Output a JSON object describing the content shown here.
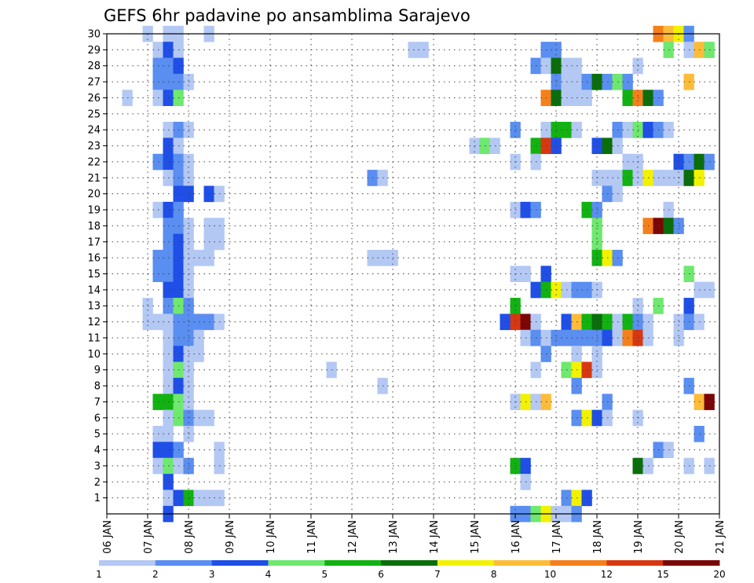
{
  "chart_data": {
    "type": "heatmap",
    "title": "GEFS 6hr padavine po ansamblima Sarajevo",
    "xlabel": "",
    "ylabel": "",
    "x_ticks": [
      "06 JAN",
      "07 JAN",
      "08 JAN",
      "09 JAN",
      "10 JAN",
      "11 JAN",
      "12 JAN",
      "13 JAN",
      "14 JAN",
      "15 JAN",
      "16 JAN",
      "17 JAN",
      "18 JAN",
      "19 JAN",
      "20 JAN",
      "21 JAN"
    ],
    "xlim_days": [
      6,
      21
    ],
    "y_ticks": [
      1,
      2,
      3,
      4,
      5,
      6,
      7,
      8,
      9,
      10,
      11,
      12,
      13,
      14,
      15,
      16,
      17,
      18,
      19,
      20,
      21,
      22,
      23,
      24,
      25,
      26,
      27,
      28,
      29,
      30
    ],
    "ylim": [
      0,
      30
    ],
    "grid": true,
    "legend_position": "bottom",
    "color_scale": {
      "bounds": [
        "1",
        "2",
        "3",
        "4",
        "5",
        "6",
        "7",
        "8",
        "10",
        "12",
        "15",
        "20"
      ],
      "colors": [
        "#b4c8f4",
        "#5a8ef0",
        "#1f4fe6",
        "#6ee86e",
        "#12b212",
        "#0a6e0a",
        "#f2f200",
        "#fcbc3a",
        "#f4801c",
        "#d63812",
        "#7a0606"
      ]
    },
    "cells_note": "[member, valid day (DD.frac of January), color class index]",
    "cells": [
      [
        30,
        7.5,
        0
      ],
      [
        30,
        7.75,
        0
      ],
      [
        30,
        7.0,
        0
      ],
      [
        30,
        8.5,
        0
      ],
      [
        30,
        19.5,
        8
      ],
      [
        30,
        19.75,
        7
      ],
      [
        30,
        20.0,
        6
      ],
      [
        30,
        20.25,
        1
      ],
      [
        29,
        7.25,
        0
      ],
      [
        29,
        7.5,
        2
      ],
      [
        29,
        7.75,
        0
      ],
      [
        29,
        13.5,
        0
      ],
      [
        29,
        13.75,
        0
      ],
      [
        29,
        16.75,
        1
      ],
      [
        29,
        17.0,
        1
      ],
      [
        29,
        19.75,
        3
      ],
      [
        29,
        20.25,
        0
      ],
      [
        29,
        20.5,
        7
      ],
      [
        29,
        20.75,
        3
      ],
      [
        28,
        7.25,
        1
      ],
      [
        28,
        7.5,
        1
      ],
      [
        28,
        7.75,
        2
      ],
      [
        28,
        16.5,
        1
      ],
      [
        28,
        16.75,
        0
      ],
      [
        28,
        17.0,
        5
      ],
      [
        28,
        17.25,
        0
      ],
      [
        28,
        17.5,
        0
      ],
      [
        28,
        19.0,
        0
      ],
      [
        27,
        7.25,
        1
      ],
      [
        27,
        7.5,
        1
      ],
      [
        27,
        7.75,
        1
      ],
      [
        27,
        8.0,
        0
      ],
      [
        27,
        17.0,
        1
      ],
      [
        27,
        17.25,
        0
      ],
      [
        27,
        17.5,
        0
      ],
      [
        27,
        17.75,
        1
      ],
      [
        27,
        18.0,
        5
      ],
      [
        27,
        18.25,
        1
      ],
      [
        27,
        18.5,
        3
      ],
      [
        27,
        18.75,
        1
      ],
      [
        27,
        20.25,
        7
      ],
      [
        26,
        6.5,
        0
      ],
      [
        26,
        7.25,
        0
      ],
      [
        26,
        7.5,
        2
      ],
      [
        26,
        7.75,
        3
      ],
      [
        26,
        16.75,
        8
      ],
      [
        26,
        17.0,
        5
      ],
      [
        26,
        17.25,
        0
      ],
      [
        26,
        17.5,
        0
      ],
      [
        26,
        17.75,
        0
      ],
      [
        26,
        18.75,
        4
      ],
      [
        26,
        19.0,
        8
      ],
      [
        26,
        19.25,
        5
      ],
      [
        26,
        19.5,
        1
      ],
      [
        24,
        7.5,
        0
      ],
      [
        24,
        7.75,
        1
      ],
      [
        24,
        8.0,
        0
      ],
      [
        24,
        16.0,
        1
      ],
      [
        24,
        16.75,
        0
      ],
      [
        24,
        17.0,
        4
      ],
      [
        24,
        17.25,
        4
      ],
      [
        24,
        17.5,
        0
      ],
      [
        24,
        18.5,
        1
      ],
      [
        24,
        18.75,
        0
      ],
      [
        24,
        19.0,
        3
      ],
      [
        24,
        19.25,
        2
      ],
      [
        24,
        19.5,
        1
      ],
      [
        24,
        19.75,
        0
      ],
      [
        23,
        7.5,
        2
      ],
      [
        23,
        7.75,
        0
      ],
      [
        23,
        15.0,
        0
      ],
      [
        23,
        15.25,
        3
      ],
      [
        23,
        15.5,
        0
      ],
      [
        23,
        16.5,
        4
      ],
      [
        23,
        16.75,
        9
      ],
      [
        23,
        17.0,
        2
      ],
      [
        23,
        18.0,
        2
      ],
      [
        23,
        18.25,
        5
      ],
      [
        23,
        18.5,
        0
      ],
      [
        22,
        7.25,
        1
      ],
      [
        22,
        7.5,
        2
      ],
      [
        22,
        7.75,
        1
      ],
      [
        22,
        8.0,
        0
      ],
      [
        22,
        16.0,
        0
      ],
      [
        22,
        16.5,
        0
      ],
      [
        22,
        18.75,
        0
      ],
      [
        22,
        19.0,
        0
      ],
      [
        22,
        20.0,
        2
      ],
      [
        22,
        20.25,
        1
      ],
      [
        22,
        20.5,
        5
      ],
      [
        22,
        20.75,
        1
      ],
      [
        21,
        7.5,
        0
      ],
      [
        21,
        7.75,
        1
      ],
      [
        21,
        8.0,
        0
      ],
      [
        21,
        12.5,
        1
      ],
      [
        21,
        12.75,
        0
      ],
      [
        21,
        18.0,
        0
      ],
      [
        21,
        18.25,
        0
      ],
      [
        21,
        18.5,
        0
      ],
      [
        21,
        18.75,
        4
      ],
      [
        21,
        19.0,
        0
      ],
      [
        21,
        19.25,
        6
      ],
      [
        21,
        19.5,
        0
      ],
      [
        21,
        19.75,
        0
      ],
      [
        21,
        20.0,
        0
      ],
      [
        21,
        20.25,
        5
      ],
      [
        21,
        20.5,
        6
      ],
      [
        20,
        7.75,
        2
      ],
      [
        20,
        8.0,
        2
      ],
      [
        20,
        8.5,
        2
      ],
      [
        20,
        8.75,
        0
      ],
      [
        20,
        18.25,
        1
      ],
      [
        20,
        18.5,
        0
      ],
      [
        19,
        7.25,
        0
      ],
      [
        19,
        7.5,
        2
      ],
      [
        19,
        7.75,
        1
      ],
      [
        19,
        16.0,
        0
      ],
      [
        19,
        16.25,
        2
      ],
      [
        19,
        16.5,
        1
      ],
      [
        19,
        17.75,
        4
      ],
      [
        19,
        18.0,
        1
      ],
      [
        19,
        19.75,
        0
      ],
      [
        18,
        7.5,
        1
      ],
      [
        18,
        7.75,
        1
      ],
      [
        18,
        8.0,
        0
      ],
      [
        18,
        8.5,
        0
      ],
      [
        18,
        8.75,
        0
      ],
      [
        18,
        18.0,
        3
      ],
      [
        18,
        19.25,
        8
      ],
      [
        18,
        19.5,
        10
      ],
      [
        18,
        19.75,
        5
      ],
      [
        18,
        20.0,
        1
      ],
      [
        17,
        7.5,
        1
      ],
      [
        17,
        7.75,
        2
      ],
      [
        17,
        8.0,
        0
      ],
      [
        17,
        8.5,
        0
      ],
      [
        17,
        8.75,
        0
      ],
      [
        17,
        18.0,
        3
      ],
      [
        16,
        7.25,
        1
      ],
      [
        16,
        7.5,
        1
      ],
      [
        16,
        7.75,
        2
      ],
      [
        16,
        8.0,
        0
      ],
      [
        16,
        8.25,
        0
      ],
      [
        16,
        8.5,
        0
      ],
      [
        16,
        12.5,
        0
      ],
      [
        16,
        12.75,
        0
      ],
      [
        16,
        13.0,
        0
      ],
      [
        16,
        18.0,
        4
      ],
      [
        16,
        18.25,
        6
      ],
      [
        16,
        18.5,
        1
      ],
      [
        15,
        7.25,
        1
      ],
      [
        15,
        7.5,
        1
      ],
      [
        15,
        7.75,
        2
      ],
      [
        15,
        8.0,
        0
      ],
      [
        15,
        16.0,
        0
      ],
      [
        15,
        16.25,
        0
      ],
      [
        15,
        16.75,
        2
      ],
      [
        15,
        20.25,
        3
      ],
      [
        14,
        7.5,
        2
      ],
      [
        14,
        7.75,
        2
      ],
      [
        14,
        8.0,
        0
      ],
      [
        14,
        16.5,
        2
      ],
      [
        14,
        16.75,
        4
      ],
      [
        14,
        17.0,
        6
      ],
      [
        14,
        17.25,
        0
      ],
      [
        14,
        17.5,
        1
      ],
      [
        14,
        17.75,
        1
      ],
      [
        14,
        18.0,
        0
      ],
      [
        14,
        20.5,
        0
      ],
      [
        14,
        20.75,
        0
      ],
      [
        13,
        7.0,
        0
      ],
      [
        13,
        7.5,
        1
      ],
      [
        13,
        7.75,
        3
      ],
      [
        13,
        8.0,
        1
      ],
      [
        13,
        16.0,
        4
      ],
      [
        13,
        19.0,
        0
      ],
      [
        13,
        19.5,
        3
      ],
      [
        13,
        20.25,
        2
      ],
      [
        12,
        7.0,
        0
      ],
      [
        12,
        7.25,
        0
      ],
      [
        12,
        7.5,
        0
      ],
      [
        12,
        7.75,
        1
      ],
      [
        12,
        8.0,
        1
      ],
      [
        12,
        8.25,
        1
      ],
      [
        12,
        8.5,
        1
      ],
      [
        12,
        8.75,
        0
      ],
      [
        12,
        15.75,
        2
      ],
      [
        12,
        16.0,
        9
      ],
      [
        12,
        16.25,
        10
      ],
      [
        12,
        16.5,
        0
      ],
      [
        12,
        17.25,
        2
      ],
      [
        12,
        17.5,
        7
      ],
      [
        12,
        17.75,
        4
      ],
      [
        12,
        18.0,
        5
      ],
      [
        12,
        18.25,
        4
      ],
      [
        12,
        18.5,
        0
      ],
      [
        12,
        18.75,
        4
      ],
      [
        12,
        19.0,
        1
      ],
      [
        12,
        19.25,
        0
      ],
      [
        12,
        20.0,
        0
      ],
      [
        12,
        20.25,
        1
      ],
      [
        12,
        20.5,
        0
      ],
      [
        11,
        7.5,
        0
      ],
      [
        11,
        7.75,
        1
      ],
      [
        11,
        8.0,
        1
      ],
      [
        11,
        8.25,
        0
      ],
      [
        11,
        16.25,
        0
      ],
      [
        11,
        16.5,
        1
      ],
      [
        11,
        16.75,
        0
      ],
      [
        11,
        17.0,
        1
      ],
      [
        11,
        17.25,
        1
      ],
      [
        11,
        17.5,
        1
      ],
      [
        11,
        17.75,
        1
      ],
      [
        11,
        18.0,
        1
      ],
      [
        11,
        18.25,
        2
      ],
      [
        11,
        18.5,
        0
      ],
      [
        11,
        18.75,
        8
      ],
      [
        11,
        19.0,
        9
      ],
      [
        11,
        19.25,
        0
      ],
      [
        11,
        20.0,
        0
      ],
      [
        10,
        7.5,
        0
      ],
      [
        10,
        7.75,
        2
      ],
      [
        10,
        8.0,
        0
      ],
      [
        10,
        8.25,
        0
      ],
      [
        10,
        16.75,
        1
      ],
      [
        10,
        17.5,
        0
      ],
      [
        10,
        18.0,
        0
      ],
      [
        9,
        7.5,
        0
      ],
      [
        9,
        7.75,
        3
      ],
      [
        9,
        8.0,
        0
      ],
      [
        9,
        11.5,
        0
      ],
      [
        9,
        16.5,
        0
      ],
      [
        9,
        17.25,
        3
      ],
      [
        9,
        17.5,
        6
      ],
      [
        9,
        17.75,
        9
      ],
      [
        9,
        18.0,
        0
      ],
      [
        8,
        7.5,
        0
      ],
      [
        8,
        7.75,
        2
      ],
      [
        8,
        8.0,
        0
      ],
      [
        8,
        12.75,
        0
      ],
      [
        8,
        17.5,
        1
      ],
      [
        8,
        20.25,
        1
      ],
      [
        7,
        7.25,
        4
      ],
      [
        7,
        7.5,
        4
      ],
      [
        7,
        7.75,
        3
      ],
      [
        7,
        8.0,
        0
      ],
      [
        7,
        16.0,
        0
      ],
      [
        7,
        16.25,
        6
      ],
      [
        7,
        16.5,
        0
      ],
      [
        7,
        16.75,
        7
      ],
      [
        7,
        18.25,
        1
      ],
      [
        7,
        20.5,
        7
      ],
      [
        7,
        20.75,
        10
      ],
      [
        6,
        7.5,
        0
      ],
      [
        6,
        7.75,
        3
      ],
      [
        6,
        8.0,
        1
      ],
      [
        6,
        8.25,
        0
      ],
      [
        6,
        8.5,
        0
      ],
      [
        6,
        17.5,
        1
      ],
      [
        6,
        17.75,
        6
      ],
      [
        6,
        18.0,
        2
      ],
      [
        6,
        18.25,
        0
      ],
      [
        6,
        19.0,
        0
      ],
      [
        5,
        7.25,
        0
      ],
      [
        5,
        7.5,
        0
      ],
      [
        5,
        8.0,
        0
      ],
      [
        5,
        20.5,
        1
      ],
      [
        4,
        7.25,
        2
      ],
      [
        4,
        7.5,
        2
      ],
      [
        4,
        7.75,
        1
      ],
      [
        4,
        8.75,
        0
      ],
      [
        4,
        19.5,
        1
      ],
      [
        4,
        19.75,
        0
      ],
      [
        3,
        7.25,
        0
      ],
      [
        3,
        7.5,
        3
      ],
      [
        3,
        7.75,
        0
      ],
      [
        3,
        8.0,
        1
      ],
      [
        3,
        8.75,
        0
      ],
      [
        3,
        16.0,
        4
      ],
      [
        3,
        16.25,
        2
      ],
      [
        3,
        19.0,
        5
      ],
      [
        3,
        19.25,
        0
      ],
      [
        3,
        20.25,
        0
      ],
      [
        3,
        20.75,
        0
      ],
      [
        2,
        7.5,
        2
      ],
      [
        2,
        16.25,
        0
      ],
      [
        1,
        7.5,
        0
      ],
      [
        1,
        7.75,
        2
      ],
      [
        1,
        8.0,
        4
      ],
      [
        1,
        8.25,
        0
      ],
      [
        1,
        8.5,
        0
      ],
      [
        1,
        8.75,
        0
      ],
      [
        1,
        17.25,
        1
      ],
      [
        1,
        17.5,
        6
      ],
      [
        1,
        17.75,
        2
      ],
      [
        0,
        7.5,
        2
      ],
      [
        0,
        16.0,
        1
      ],
      [
        0,
        16.25,
        1
      ],
      [
        0,
        16.5,
        3
      ],
      [
        0,
        16.75,
        6
      ],
      [
        0,
        17.0,
        0
      ],
      [
        0,
        17.25,
        0
      ],
      [
        0,
        17.5,
        1
      ]
    ]
  }
}
